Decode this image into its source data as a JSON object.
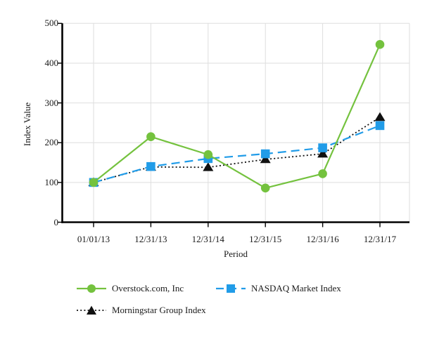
{
  "chart_data": {
    "type": "line",
    "title": "",
    "xlabel": "Period",
    "ylabel": "Index Value",
    "categories": [
      "01/01/13",
      "12/31/13",
      "12/31/14",
      "12/31/15",
      "12/31/16",
      "12/31/17"
    ],
    "y_ticks": [
      0,
      100,
      200,
      300,
      400,
      500
    ],
    "ylim": [
      0,
      500
    ],
    "grid": true,
    "legend_position": "bottom",
    "series": [
      {
        "name": "Overstock.com, Inc",
        "color": "#74c23e",
        "marker": "circle",
        "line": "solid",
        "values": [
          100,
          215,
          170,
          86,
          122,
          447
        ]
      },
      {
        "name": "NASDAQ Market Index",
        "color": "#219ce8",
        "marker": "square",
        "line": "dashed",
        "values": [
          100,
          140,
          160,
          172,
          187,
          243
        ]
      },
      {
        "name": "Morningstar Group Index",
        "color": "#111111",
        "marker": "triangle",
        "line": "dotted",
        "values": [
          100,
          139,
          138,
          158,
          172,
          264
        ]
      }
    ]
  },
  "colors": {
    "background": "#ffffff",
    "grid": "#dedede",
    "axis": "#000000",
    "text": "#1a1a1a"
  }
}
